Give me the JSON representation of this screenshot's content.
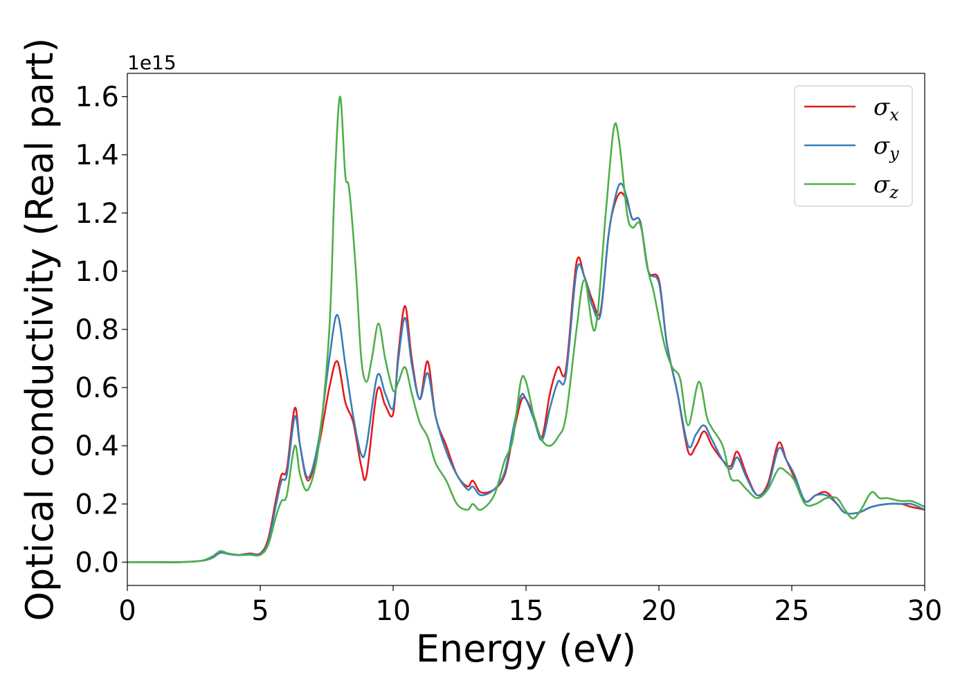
{
  "chart_data": {
    "type": "line",
    "title": "",
    "xlabel": "Energy (eV)",
    "ylabel": "Optical conductivity (Real part)",
    "y_offset_label": "1e15",
    "xlim": [
      0,
      30
    ],
    "ylim": [
      -0.08,
      1.68
    ],
    "x_ticks": [
      0,
      5,
      10,
      15,
      20,
      25,
      30
    ],
    "x_tick_labels": [
      "0",
      "5",
      "10",
      "15",
      "20",
      "25",
      "30"
    ],
    "y_ticks": [
      0.0,
      0.2,
      0.4,
      0.6,
      0.8,
      1.0,
      1.2,
      1.4,
      1.6
    ],
    "y_tick_labels": [
      "0.0",
      "0.2",
      "0.4",
      "0.6",
      "0.8",
      "1.0",
      "1.2",
      "1.4",
      "1.6"
    ],
    "grid": false,
    "legend_position": "top-right",
    "series": [
      {
        "name": "σ_x",
        "legend_symbol": "σ",
        "legend_sub": "x",
        "color": "#e41a1c",
        "x": [
          0,
          1,
          2,
          2.8,
          3.2,
          3.5,
          3.8,
          4.2,
          4.6,
          5.0,
          5.3,
          5.6,
          5.8,
          6.0,
          6.3,
          6.5,
          6.8,
          7.2,
          7.6,
          7.9,
          8.2,
          8.5,
          8.8,
          9.0,
          9.4,
          9.7,
          10.0,
          10.2,
          10.45,
          10.7,
          11.0,
          11.3,
          11.6,
          12.0,
          12.4,
          12.8,
          13.0,
          13.3,
          13.8,
          14.2,
          14.5,
          14.8,
          15.0,
          15.3,
          15.6,
          15.9,
          16.2,
          16.5,
          16.9,
          17.2,
          17.5,
          17.8,
          18.1,
          18.3,
          18.55,
          18.8,
          19.0,
          19.3,
          19.6,
          20.0,
          20.3,
          20.7,
          21.1,
          21.4,
          21.7,
          22.0,
          22.4,
          22.7,
          22.95,
          23.3,
          23.7,
          24.1,
          24.5,
          24.8,
          25.1,
          25.5,
          25.9,
          26.3,
          26.7,
          27.0,
          27.5,
          28.0,
          28.6,
          29.1,
          29.5,
          30.0
        ],
        "y": [
          0.0,
          0.0,
          0.0,
          0.005,
          0.015,
          0.035,
          0.028,
          0.025,
          0.03,
          0.03,
          0.08,
          0.22,
          0.3,
          0.32,
          0.53,
          0.4,
          0.28,
          0.4,
          0.6,
          0.69,
          0.55,
          0.48,
          0.33,
          0.3,
          0.59,
          0.54,
          0.51,
          0.72,
          0.88,
          0.7,
          0.56,
          0.69,
          0.5,
          0.4,
          0.3,
          0.26,
          0.28,
          0.24,
          0.25,
          0.3,
          0.43,
          0.55,
          0.56,
          0.5,
          0.43,
          0.58,
          0.67,
          0.66,
          1.03,
          0.98,
          0.9,
          0.86,
          1.12,
          1.22,
          1.27,
          1.24,
          1.18,
          1.17,
          1.0,
          0.97,
          0.75,
          0.58,
          0.38,
          0.4,
          0.45,
          0.4,
          0.35,
          0.33,
          0.38,
          0.3,
          0.23,
          0.27,
          0.41,
          0.35,
          0.29,
          0.21,
          0.23,
          0.24,
          0.2,
          0.17,
          0.17,
          0.19,
          0.2,
          0.2,
          0.19,
          0.18
        ]
      },
      {
        "name": "σ_y",
        "legend_symbol": "σ",
        "legend_sub": "y",
        "color": "#377eb8",
        "x": [
          0,
          1,
          2,
          2.8,
          3.2,
          3.5,
          3.8,
          4.2,
          4.6,
          5.0,
          5.3,
          5.6,
          5.8,
          6.0,
          6.3,
          6.5,
          6.8,
          7.2,
          7.6,
          7.9,
          8.2,
          8.5,
          8.8,
          9.0,
          9.4,
          9.7,
          10.0,
          10.2,
          10.45,
          10.7,
          11.0,
          11.3,
          11.6,
          12.0,
          12.4,
          12.8,
          13.0,
          13.3,
          13.8,
          14.2,
          14.5,
          14.8,
          15.0,
          15.3,
          15.6,
          15.9,
          16.2,
          16.5,
          16.9,
          17.2,
          17.5,
          17.8,
          18.1,
          18.4,
          18.6,
          18.8,
          19.0,
          19.3,
          19.6,
          20.0,
          20.3,
          20.7,
          21.1,
          21.4,
          21.7,
          22.0,
          22.4,
          22.7,
          22.95,
          23.3,
          23.7,
          24.1,
          24.5,
          24.8,
          25.1,
          25.5,
          25.9,
          26.3,
          26.7,
          27.0,
          27.5,
          28.0,
          28.6,
          29.1,
          29.5,
          30.0
        ],
        "y": [
          0.0,
          0.0,
          0.0,
          0.005,
          0.015,
          0.032,
          0.028,
          0.024,
          0.028,
          0.028,
          0.07,
          0.2,
          0.28,
          0.3,
          0.5,
          0.4,
          0.29,
          0.42,
          0.7,
          0.85,
          0.68,
          0.5,
          0.37,
          0.4,
          0.64,
          0.58,
          0.53,
          0.7,
          0.84,
          0.68,
          0.56,
          0.65,
          0.5,
          0.38,
          0.3,
          0.25,
          0.26,
          0.23,
          0.25,
          0.31,
          0.45,
          0.57,
          0.56,
          0.49,
          0.42,
          0.53,
          0.62,
          0.64,
          1.0,
          0.98,
          0.88,
          0.85,
          1.12,
          1.27,
          1.3,
          1.25,
          1.18,
          1.17,
          1.0,
          0.96,
          0.75,
          0.58,
          0.4,
          0.44,
          0.47,
          0.42,
          0.35,
          0.32,
          0.36,
          0.29,
          0.23,
          0.26,
          0.39,
          0.35,
          0.3,
          0.21,
          0.23,
          0.23,
          0.2,
          0.17,
          0.17,
          0.19,
          0.2,
          0.2,
          0.2,
          0.18
        ]
      },
      {
        "name": "σ_z",
        "legend_symbol": "σ",
        "legend_sub": "z",
        "color": "#4daf4a",
        "x": [
          0,
          1,
          2,
          2.8,
          3.2,
          3.5,
          3.8,
          4.2,
          4.6,
          5.0,
          5.3,
          5.6,
          5.8,
          6.0,
          6.3,
          6.5,
          6.8,
          7.2,
          7.6,
          7.8,
          8.0,
          8.2,
          8.35,
          8.6,
          8.8,
          9.0,
          9.2,
          9.45,
          9.7,
          10.0,
          10.2,
          10.45,
          10.7,
          11.0,
          11.3,
          11.6,
          12.0,
          12.4,
          12.8,
          13.0,
          13.3,
          13.8,
          14.2,
          14.5,
          14.8,
          15.0,
          15.3,
          15.6,
          15.9,
          16.2,
          16.5,
          16.9,
          17.2,
          17.6,
          18.0,
          18.3,
          18.5,
          18.8,
          19.0,
          19.3,
          19.6,
          19.8,
          20.2,
          20.5,
          20.8,
          21.1,
          21.5,
          21.8,
          22.0,
          22.4,
          22.7,
          23.0,
          23.3,
          23.7,
          24.1,
          24.5,
          24.8,
          25.1,
          25.5,
          25.9,
          26.3,
          26.7,
          27.0,
          27.3,
          27.6,
          28.0,
          28.3,
          28.6,
          29.1,
          29.5,
          30.0
        ],
        "y": [
          0.0,
          0.0,
          0.0,
          0.005,
          0.02,
          0.038,
          0.03,
          0.025,
          0.025,
          0.025,
          0.06,
          0.16,
          0.21,
          0.23,
          0.4,
          0.3,
          0.25,
          0.4,
          0.8,
          1.3,
          1.6,
          1.33,
          1.28,
          1.0,
          0.7,
          0.62,
          0.7,
          0.82,
          0.7,
          0.59,
          0.62,
          0.67,
          0.58,
          0.48,
          0.43,
          0.34,
          0.28,
          0.2,
          0.18,
          0.2,
          0.18,
          0.23,
          0.35,
          0.42,
          0.62,
          0.62,
          0.5,
          0.42,
          0.4,
          0.43,
          0.5,
          0.8,
          0.97,
          0.8,
          1.2,
          1.49,
          1.45,
          1.2,
          1.15,
          1.16,
          1.0,
          0.93,
          0.75,
          0.67,
          0.63,
          0.47,
          0.62,
          0.5,
          0.46,
          0.4,
          0.29,
          0.28,
          0.25,
          0.22,
          0.25,
          0.32,
          0.31,
          0.28,
          0.2,
          0.2,
          0.22,
          0.22,
          0.18,
          0.15,
          0.18,
          0.24,
          0.22,
          0.22,
          0.21,
          0.21,
          0.19
        ]
      }
    ]
  }
}
